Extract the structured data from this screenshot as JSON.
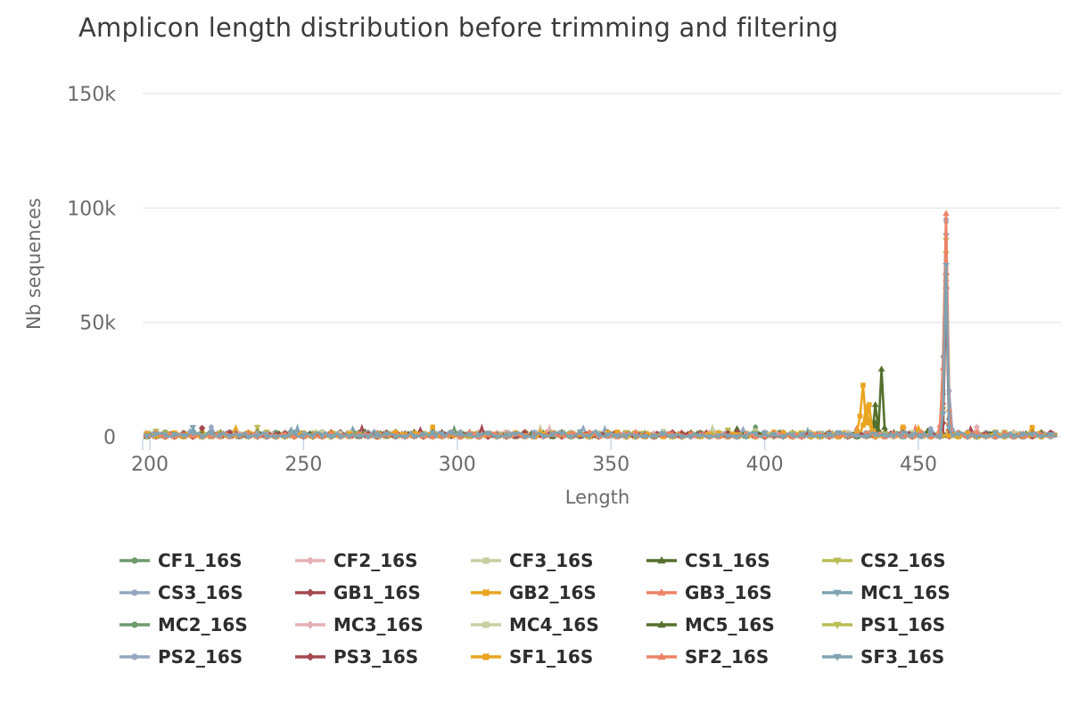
{
  "chart_data": {
    "type": "line",
    "title": "Amplicon length distribution before trimming and filtering",
    "xlabel": "Length",
    "ylabel": "Nb sequences",
    "x_range": [
      199,
      495
    ],
    "ylim": [
      0,
      150000
    ],
    "x_ticks": [
      {
        "v": 200,
        "label": "200"
      },
      {
        "v": 250,
        "label": "250"
      },
      {
        "v": 300,
        "label": "300"
      },
      {
        "v": 350,
        "label": "350"
      },
      {
        "v": 400,
        "label": "400"
      },
      {
        "v": 450,
        "label": "450"
      }
    ],
    "y_ticks": [
      {
        "v": 0,
        "label": "0"
      },
      {
        "v": 50000,
        "label": "50k"
      },
      {
        "v": 100000,
        "label": "100k"
      },
      {
        "v": 150000,
        "label": "150k"
      }
    ],
    "grid": "horizontal-only",
    "legend_position": "bottom",
    "mode": "lines+markers",
    "marker_cycle": [
      "circle",
      "diamond",
      "square",
      "triangle-up",
      "triangle-down"
    ],
    "baseline_noise_max": 2000,
    "series": [
      {
        "name": "CF1_16S",
        "color": "#6d9b6f",
        "marker": "circle",
        "peaks": []
      },
      {
        "name": "CF2_16S",
        "color": "#e5b0b5",
        "marker": "diamond",
        "peaks": []
      },
      {
        "name": "CF3_16S",
        "color": "#c9cda1",
        "marker": "square",
        "peaks": []
      },
      {
        "name": "CS1_16S",
        "color": "#55702d",
        "marker": "triangle-up",
        "peaks": [
          [
            435,
            1500
          ],
          [
            436,
            14000
          ],
          [
            437,
            3000
          ],
          [
            438,
            29500
          ],
          [
            439,
            4000
          ]
        ]
      },
      {
        "name": "CS2_16S",
        "color": "#b9bd55",
        "marker": "triangle-down",
        "peaks": [
          [
            458,
            12000
          ],
          [
            459,
            86000
          ],
          [
            460,
            5000
          ]
        ]
      },
      {
        "name": "CS3_16S",
        "color": "#94a6c0",
        "marker": "circle",
        "peaks": [
          [
            458,
            20000
          ],
          [
            459,
            94000
          ],
          [
            460,
            8000
          ]
        ]
      },
      {
        "name": "GB1_16S",
        "color": "#a4494e",
        "marker": "diamond",
        "peaks": [
          [
            458,
            6000
          ],
          [
            459,
            71000
          ],
          [
            460,
            3000
          ]
        ]
      },
      {
        "name": "GB2_16S",
        "color": "#e9a520",
        "marker": "square",
        "peaks": [
          [
            432,
            5000
          ],
          [
            433,
            13000
          ],
          [
            434,
            6000
          ]
        ]
      },
      {
        "name": "GB3_16S",
        "color": "#ee8366",
        "marker": "triangle-up",
        "peaks": [
          [
            458,
            15000
          ],
          [
            459,
            69000
          ],
          [
            460,
            6000
          ]
        ]
      },
      {
        "name": "MC1_16S",
        "color": "#7fa4b2",
        "marker": "triangle-down",
        "peaks": [
          [
            458,
            18000
          ],
          [
            459,
            88000
          ],
          [
            460,
            7000
          ]
        ]
      },
      {
        "name": "MC2_16S",
        "color": "#6d9b6f",
        "marker": "circle",
        "peaks": []
      },
      {
        "name": "MC3_16S",
        "color": "#e5b0b5",
        "marker": "diamond",
        "peaks": []
      },
      {
        "name": "MC4_16S",
        "color": "#c9cda1",
        "marker": "square",
        "peaks": []
      },
      {
        "name": "MC5_16S",
        "color": "#55702d",
        "marker": "triangle-up",
        "peaks": [
          [
            436,
            6000
          ],
          [
            453,
            2500
          ]
        ]
      },
      {
        "name": "PS1_16S",
        "color": "#b9bd55",
        "marker": "triangle-down",
        "peaks": [
          [
            459,
            80000
          ]
        ]
      },
      {
        "name": "PS2_16S",
        "color": "#94a6c0",
        "marker": "circle",
        "peaks": [
          [
            454,
            3500
          ],
          [
            458,
            35000
          ],
          [
            459,
            95000
          ],
          [
            460,
            20000
          ],
          [
            461,
            3000
          ]
        ]
      },
      {
        "name": "PS3_16S",
        "color": "#a4494e",
        "marker": "diamond",
        "peaks": [
          [
            459,
            65000
          ]
        ]
      },
      {
        "name": "SF1_16S",
        "color": "#e9a520",
        "marker": "square",
        "peaks": [
          [
            430,
            1500
          ],
          [
            431,
            9000
          ],
          [
            432,
            22500
          ],
          [
            433,
            6000
          ],
          [
            434,
            14000
          ],
          [
            435,
            2500
          ]
        ]
      },
      {
        "name": "SF2_16S",
        "color": "#ee8366",
        "marker": "triangle-up",
        "peaks": [
          [
            457,
            5000
          ],
          [
            458,
            30000
          ],
          [
            459,
            97500
          ],
          [
            460,
            12000
          ]
        ]
      },
      {
        "name": "SF3_16S",
        "color": "#7fa4b2",
        "marker": "triangle-down",
        "peaks": [
          [
            458,
            10000
          ],
          [
            459,
            75000
          ],
          [
            460,
            4000
          ]
        ]
      }
    ],
    "colors": {
      "title_text": "#3b3b3b",
      "axis_text": "#6b6b6b",
      "legend_text": "#2d2d2d",
      "gridline": "#e9e9e9",
      "tick_mark": "#cbd5e4",
      "background": "#ffffff"
    }
  }
}
